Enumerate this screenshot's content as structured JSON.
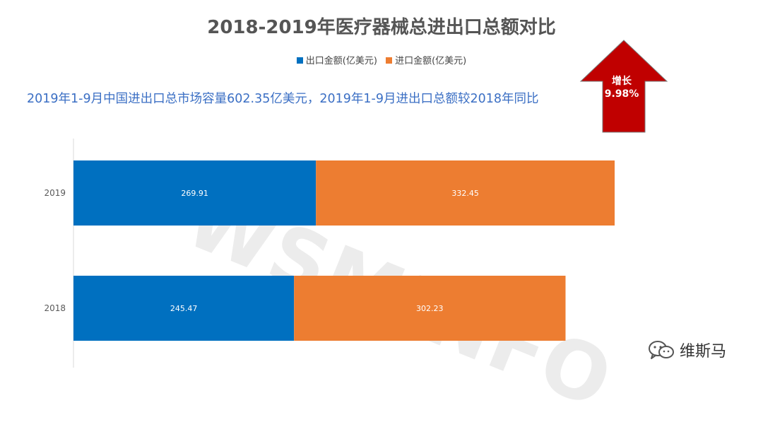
{
  "page": {
    "title": "2018-2019年医疗器械总进出口总额对比",
    "subtitle": "2019年1-9月中国进出口总市场容量602.35亿美元，2019年1-9月进出口总额较2018年同比",
    "arrow_label_line1": "增长",
    "arrow_label_line2": "9.98%",
    "watermark": "WSMINFO",
    "brand_name": "维斯马",
    "brand_icon": "wechat-icon"
  },
  "colors": {
    "export": "#0070c0",
    "import": "#ed7d31",
    "arrow": "#c00000",
    "subtitle": "#3b6fc4"
  },
  "chart_data": {
    "type": "bar",
    "orientation": "horizontal",
    "stacked": true,
    "title": "2018-2019年医疗器械总进出口总额对比",
    "categories": [
      "2019",
      "2018"
    ],
    "series": [
      {
        "name": "出口金额(亿美元)",
        "values": [
          269.91,
          245.47
        ],
        "labels": [
          "269.91",
          "245.47"
        ]
      },
      {
        "name": "进口金额(亿美元)",
        "values": [
          332.45,
          302.23
        ],
        "labels": [
          "332.45",
          "302.23"
        ]
      }
    ],
    "legend_position": "top",
    "grid": false,
    "xlim": [
      0,
      602.36
    ]
  }
}
